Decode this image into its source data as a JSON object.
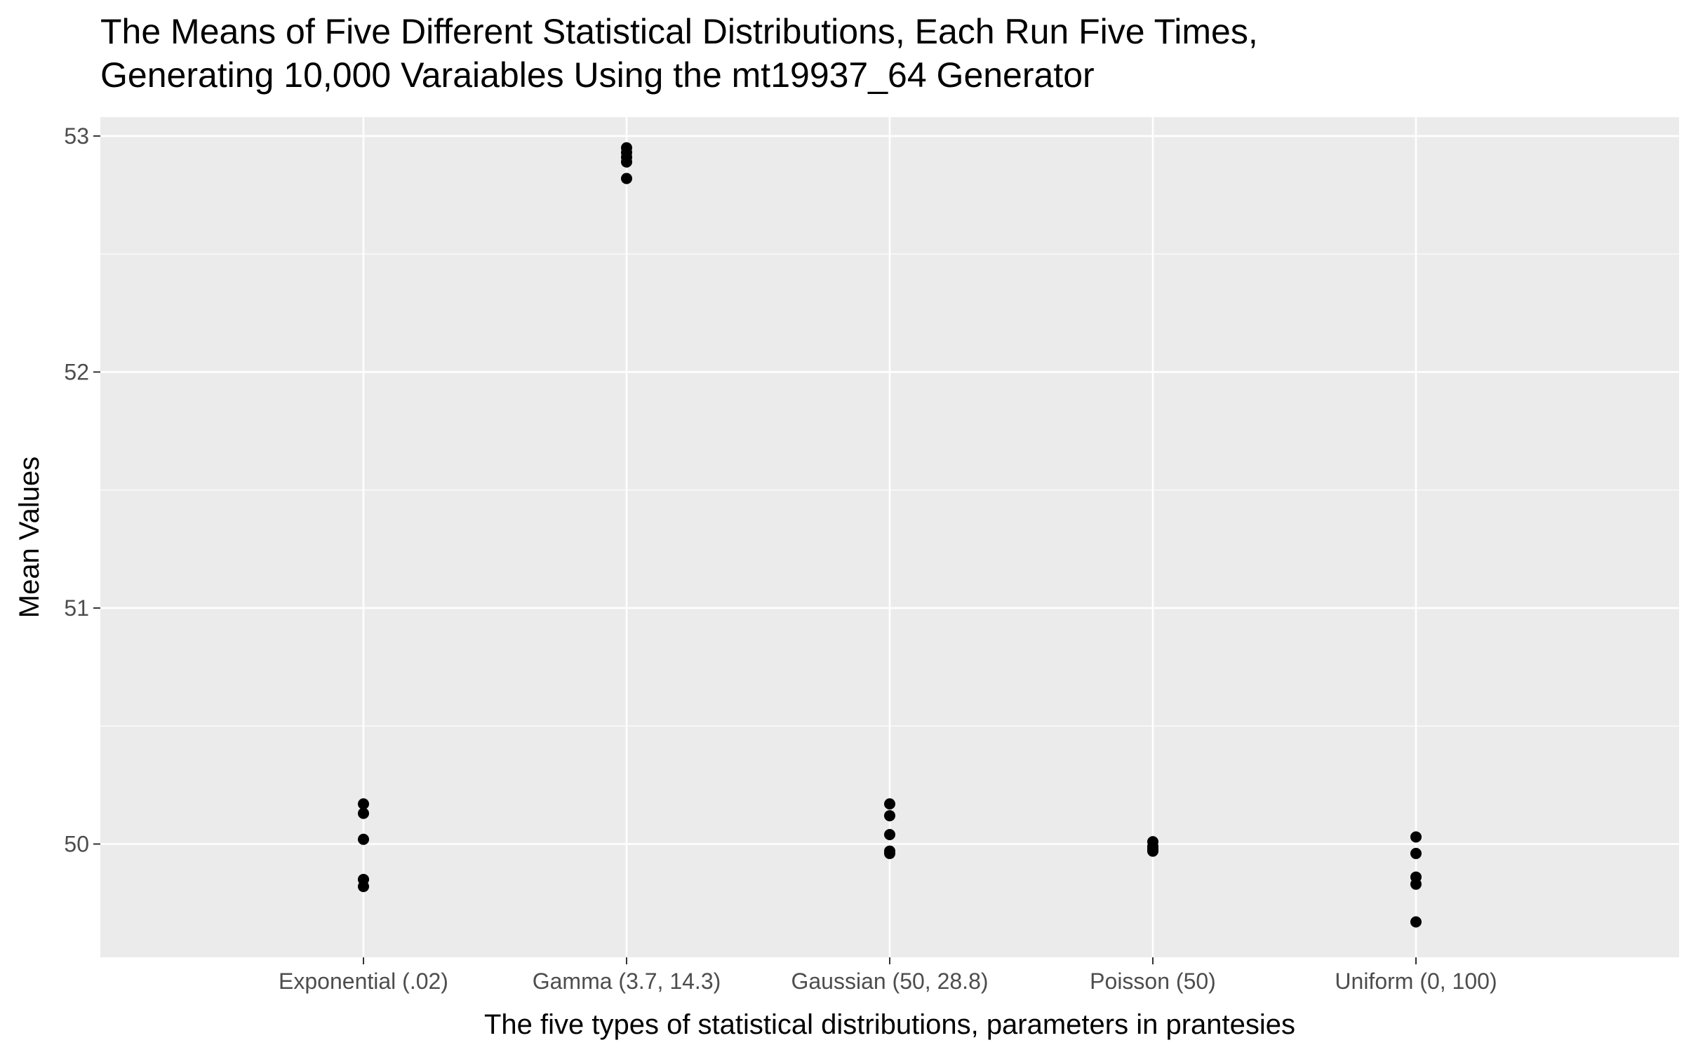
{
  "chart_data": {
    "type": "scatter",
    "title": [
      "The Means of Five Different Statistical Distributions, Each Run Five Times,",
      "Generating 10,000 Varaiables Using the mt19937_64 Generator"
    ],
    "xlabel": "The five types of statistical distributions, parameters in prantesies",
    "ylabel": "Mean Values",
    "categories": [
      "Exponential (.02)",
      "Gamma (3.7, 14.3)",
      "Gaussian (50, 28.8)",
      "Poisson (50)",
      "Uniform (0, 100)"
    ],
    "values": [
      [
        50.17,
        50.13,
        50.02,
        49.85,
        49.82
      ],
      [
        52.95,
        52.93,
        52.91,
        52.89,
        52.82
      ],
      [
        50.17,
        50.12,
        50.04,
        49.97,
        49.96
      ],
      [
        50.01,
        49.99,
        49.98,
        49.98,
        49.97
      ],
      [
        50.03,
        49.96,
        49.86,
        49.83,
        49.67
      ]
    ],
    "yticks": [
      "50",
      "51",
      "52",
      "53"
    ],
    "ylim": [
      49.52,
      53.08
    ],
    "grid": true,
    "colors": {
      "panel": "#ebebeb",
      "grid": "#ffffff",
      "point": "#000000",
      "tick_text": "#4d4d4d"
    }
  }
}
